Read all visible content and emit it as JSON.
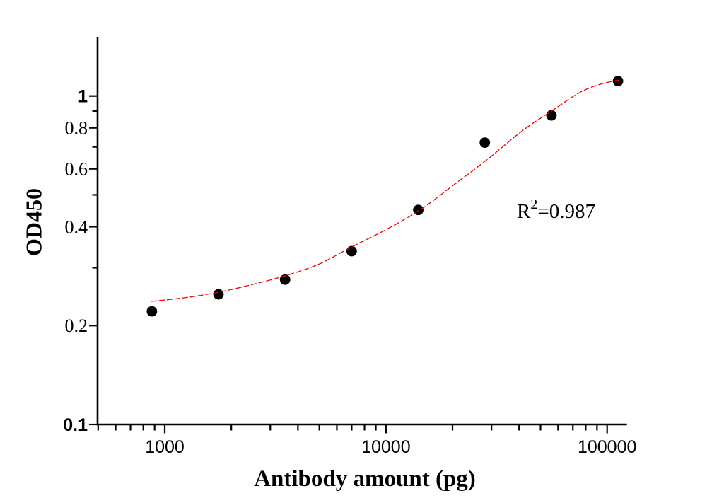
{
  "page": {
    "background": "#ffffff"
  },
  "chart_data": {
    "type": "scatter",
    "title": "",
    "xlabel": "Antibody amount (pg)",
    "ylabel": "OD450",
    "x_scale": "log",
    "y_scale": "log",
    "xlim": [
      500,
      125000
    ],
    "ylim": [
      0.1,
      1.5
    ],
    "grid": false,
    "legend": "none",
    "colors": {
      "axis": "#000000",
      "points": "#000000",
      "curve": "#ee0000"
    },
    "annotation": {
      "base": "R",
      "exponent": "2",
      "value": "=0.987"
    },
    "x_axis": {
      "major_ticks": [
        {
          "value": 1000,
          "label": "1000"
        },
        {
          "value": 10000,
          "label": "10000"
        },
        {
          "value": 100000,
          "label": "100000"
        }
      ],
      "minor_ticks": [
        500,
        600,
        700,
        800,
        900,
        2000,
        3000,
        4000,
        5000,
        6000,
        7000,
        8000,
        9000,
        20000,
        30000,
        40000,
        50000,
        60000,
        70000,
        80000,
        90000
      ]
    },
    "y_axis": {
      "major_ticks": [
        {
          "value": 1,
          "label": "1"
        },
        {
          "value": 0.8,
          "label": "0.8"
        },
        {
          "value": 0.6,
          "label": "0.6"
        },
        {
          "value": 0.4,
          "label": "0.4"
        },
        {
          "value": 0.2,
          "label": "0.2"
        },
        {
          "value": 0.1,
          "label": "0.1"
        }
      ],
      "minor_ticks": [
        0.9,
        0.7,
        0.5,
        0.3
      ]
    },
    "series": [
      {
        "name": "OD450 measurements",
        "type": "scatter",
        "marker": "circle",
        "color": "#000000",
        "points": [
          [
            875,
            0.221
          ],
          [
            1750,
            0.249
          ],
          [
            3500,
            0.276
          ],
          [
            7000,
            0.337
          ],
          [
            14000,
            0.45
          ],
          [
            28000,
            0.721
          ],
          [
            56000,
            0.873
          ],
          [
            112000,
            1.11
          ]
        ]
      },
      {
        "name": "fit curve",
        "type": "line",
        "style": "dashed",
        "color": "#ee0000",
        "r_squared": 0.987,
        "samples": [
          [
            870,
            0.237
          ],
          [
            1220,
            0.243
          ],
          [
            1720,
            0.252
          ],
          [
            2450,
            0.266
          ],
          [
            3470,
            0.283
          ],
          [
            4940,
            0.307
          ],
          [
            6990,
            0.347
          ],
          [
            9940,
            0.391
          ],
          [
            14200,
            0.449
          ],
          [
            20100,
            0.534
          ],
          [
            28800,
            0.642
          ],
          [
            41700,
            0.787
          ],
          [
            56100,
            0.9
          ],
          [
            75000,
            1.024
          ],
          [
            93500,
            1.087
          ],
          [
            114000,
            1.119
          ]
        ]
      }
    ]
  }
}
